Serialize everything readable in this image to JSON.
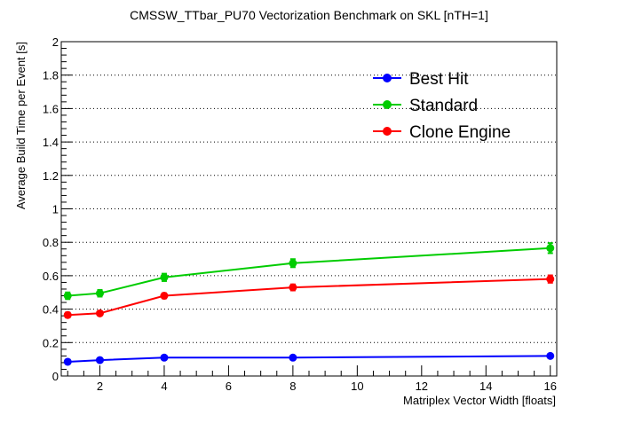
{
  "chart_data": {
    "type": "line",
    "title": "CMSSW_TTbar_PU70 Vectorization Benchmark on SKL [nTH=1]",
    "xlabel": "Matriplex Vector Width [floats]",
    "ylabel": "Average Build Time per Event [s]",
    "xlim": [
      0.8,
      16.2
    ],
    "ylim": [
      0,
      2
    ],
    "x_ticks": [
      2,
      4,
      6,
      8,
      10,
      12,
      14,
      16
    ],
    "y_ticks": [
      0,
      0.2,
      0.4,
      0.6,
      0.8,
      1,
      1.2,
      1.4,
      1.6,
      1.8,
      2
    ],
    "grid": "horizontal dotted",
    "legend_position": "top-right",
    "x": [
      1,
      2,
      4,
      8,
      16
    ],
    "series": [
      {
        "name": "Best Hit",
        "color": "#0000ff",
        "values": [
          0.085,
          0.095,
          0.11,
          0.11,
          0.12
        ],
        "errors": [
          0.008,
          0.008,
          0.01,
          0.008,
          0.01
        ]
      },
      {
        "name": "Standard",
        "color": "#00cc00",
        "values": [
          0.48,
          0.495,
          0.59,
          0.675,
          0.765
        ],
        "errors": [
          0.02,
          0.02,
          0.022,
          0.024,
          0.03
        ]
      },
      {
        "name": "Clone Engine",
        "color": "#ff0000",
        "values": [
          0.365,
          0.375,
          0.48,
          0.53,
          0.58
        ],
        "errors": [
          0.015,
          0.012,
          0.015,
          0.018,
          0.022
        ]
      }
    ]
  }
}
